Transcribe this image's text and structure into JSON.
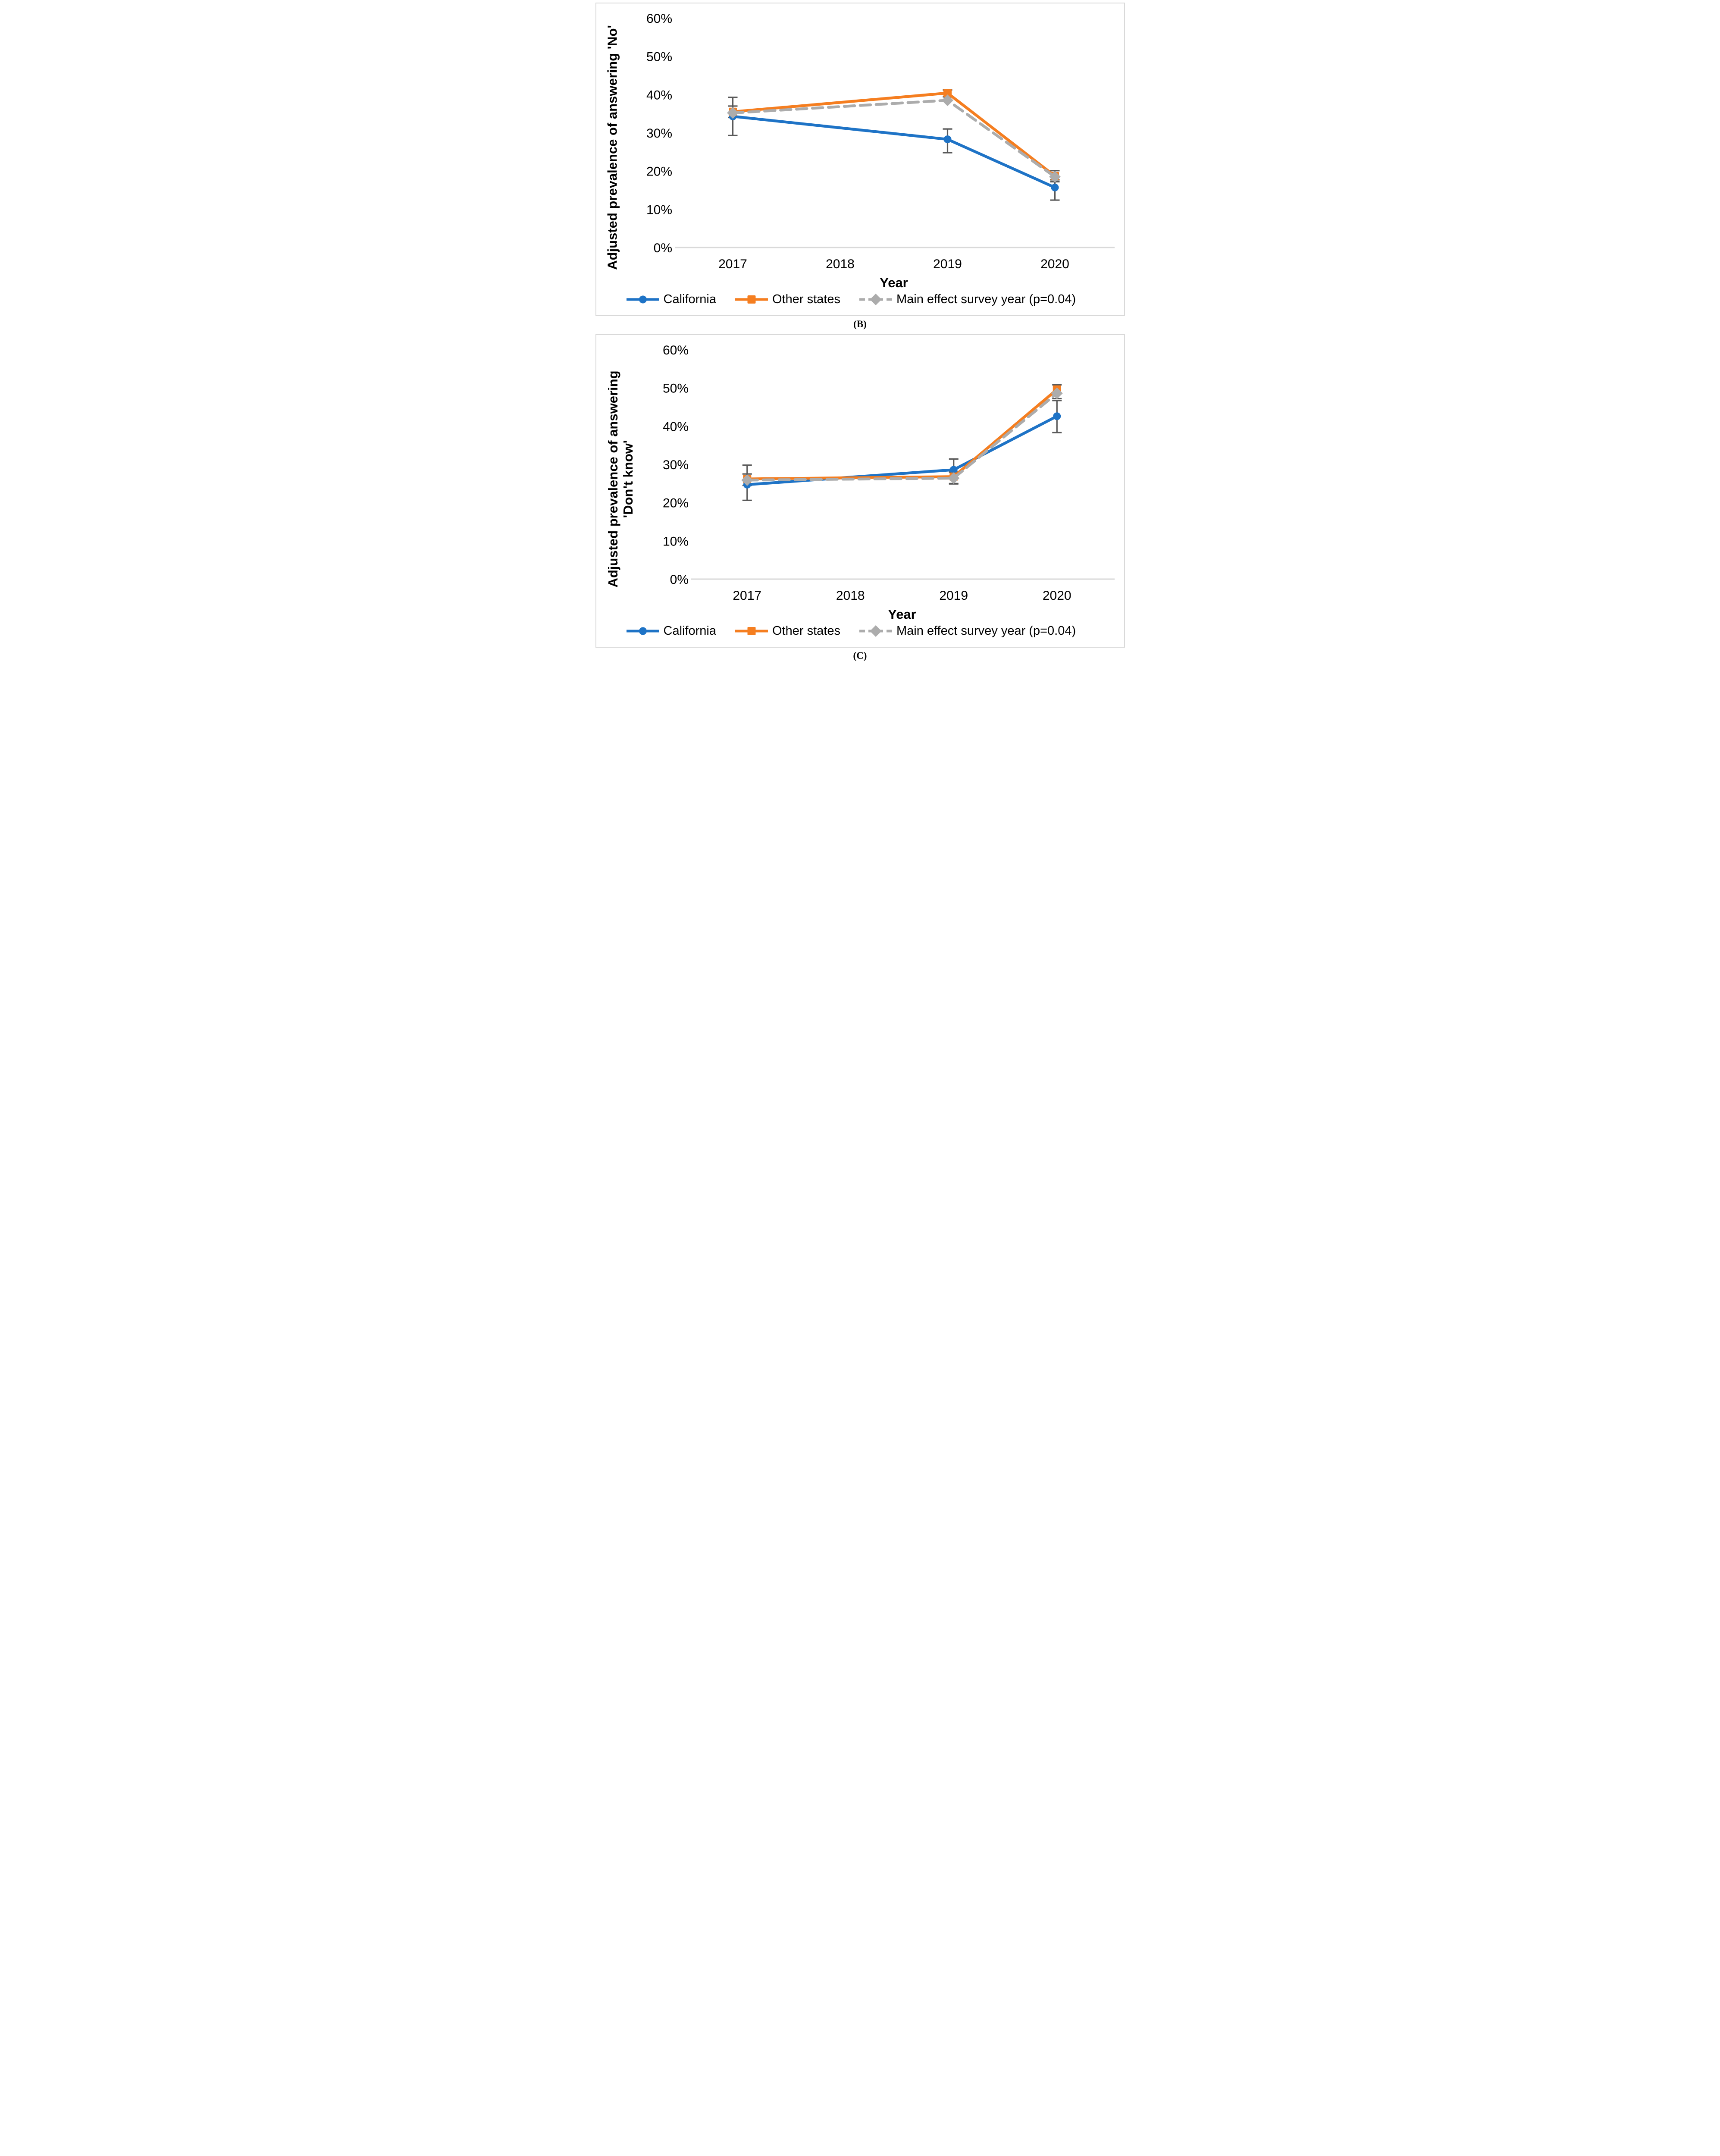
{
  "colors": {
    "california_blue": "#1E73C6",
    "other_states_orange": "#F57E20",
    "main_effect_gray": "#ACACAC",
    "error_bar": "#595959",
    "axis_line": "#D9D9D9",
    "panel_border": "#D9D9D9",
    "text": "#000000"
  },
  "chart_data": [
    {
      "type": "line",
      "panel_label": "(B)",
      "ylabel_lines": [
        "Adjusted prevalence of answering 'No'"
      ],
      "xlabel": "Year",
      "categories": [
        "2017",
        "2018",
        "2019",
        "2020"
      ],
      "ylim": [
        0,
        60
      ],
      "ytick_step": 10,
      "ytick_labels": [
        "0%",
        "10%",
        "20%",
        "30%",
        "40%",
        "50%",
        "60%"
      ],
      "grid": false,
      "legend_position": "bottom",
      "series": [
        {
          "name": "California",
          "color": "#1E73C6",
          "marker": "circle",
          "line_style": "solid",
          "points": [
            {
              "x": "2017",
              "y": 34.3,
              "err_lo": 29.3,
              "err_hi": 39.3
            },
            {
              "x": "2019",
              "y": 28.3,
              "err_lo": 24.8,
              "err_hi": 31.0
            },
            {
              "x": "2020",
              "y": 15.7,
              "err_lo": 12.4,
              "err_hi": 17.7
            }
          ]
        },
        {
          "name": "Other states",
          "color": "#F57E20",
          "marker": "square",
          "line_style": "solid",
          "points": [
            {
              "x": "2017",
              "y": 35.5,
              "err_lo": 34.0,
              "err_hi": 37.0
            },
            {
              "x": "2019",
              "y": 40.4,
              "err_lo": 39.4,
              "err_hi": 41.2
            },
            {
              "x": "2020",
              "y": 18.7,
              "err_lo": 17.2,
              "err_hi": 20.1
            }
          ]
        },
        {
          "name": "Main effect survey year (p=0.04)",
          "color": "#ACACAC",
          "marker": "diamond",
          "line_style": "dashed",
          "points": [
            {
              "x": "2017",
              "y": 35.2
            },
            {
              "x": "2019",
              "y": 38.5
            },
            {
              "x": "2020",
              "y": 18.5
            }
          ]
        }
      ]
    },
    {
      "type": "line",
      "panel_label": "(C)",
      "ylabel_lines": [
        "Adjusted prevalence of answering",
        "'Don't know'"
      ],
      "xlabel": "Year",
      "categories": [
        "2017",
        "2018",
        "2019",
        "2020"
      ],
      "ylim": [
        0,
        60
      ],
      "ytick_step": 10,
      "ytick_labels": [
        "0%",
        "10%",
        "20%",
        "30%",
        "40%",
        "50%",
        "60%"
      ],
      "grid": false,
      "legend_position": "bottom",
      "series": [
        {
          "name": "California",
          "color": "#1E73C6",
          "marker": "circle",
          "line_style": "solid",
          "points": [
            {
              "x": "2017",
              "y": 24.7,
              "err_lo": 20.6,
              "err_hi": 29.8
            },
            {
              "x": "2019",
              "y": 28.6,
              "err_lo": 24.9,
              "err_hi": 31.4
            },
            {
              "x": "2020",
              "y": 42.6,
              "err_lo": 38.3,
              "err_hi": 46.7
            }
          ]
        },
        {
          "name": "Other states",
          "color": "#F57E20",
          "marker": "square",
          "line_style": "solid",
          "points": [
            {
              "x": "2017",
              "y": 26.2,
              "err_lo": 24.5,
              "err_hi": 27.5
            },
            {
              "x": "2019",
              "y": 26.8,
              "err_lo": 25.0,
              "err_hi": 28.0
            },
            {
              "x": "2020",
              "y": 49.6,
              "err_lo": 47.2,
              "err_hi": 50.8
            }
          ]
        },
        {
          "name": "Main effect survey year (p=0.04)",
          "color": "#ACACAC",
          "marker": "diamond",
          "line_style": "dashed",
          "points": [
            {
              "x": "2017",
              "y": 25.9
            },
            {
              "x": "2019",
              "y": 26.4
            },
            {
              "x": "2020",
              "y": 48.6
            }
          ]
        }
      ]
    }
  ]
}
